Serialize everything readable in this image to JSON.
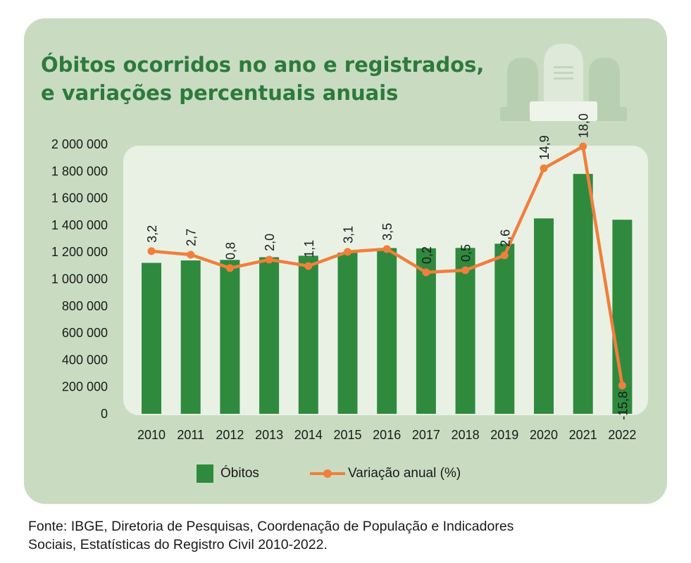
{
  "title": {
    "line1": "Óbitos ocorridos no ano e registrados,",
    "line2": "e variações percentuais anuais"
  },
  "colors": {
    "card": "#c9dcc2",
    "plot_background": "#e9f1e5",
    "bar": "#2f8a3e",
    "line": "#f07f3c",
    "title": "#2d7a3c"
  },
  "chart_data": {
    "type": "bar",
    "title": "Óbitos ocorridos no ano e registrados, e variações percentuais anuais",
    "categories": [
      "2010",
      "2011",
      "2012",
      "2013",
      "2014",
      "2015",
      "2016",
      "2017",
      "2018",
      "2019",
      "2020",
      "2021",
      "2022"
    ],
    "y_ticks": [
      "2 000 000",
      "1 800 000",
      "1 600 000",
      "1 400 000",
      "1 200 000",
      "1 000 000",
      "800 000",
      "600 000",
      "400 000",
      "200 000",
      "0"
    ],
    "ylim": [
      0,
      2000000
    ],
    "series": [
      {
        "name": "Óbitos",
        "type": "bar",
        "values": [
          1120000,
          1138000,
          1142000,
          1162000,
          1173000,
          1196000,
          1230000,
          1228000,
          1231000,
          1262000,
          1450000,
          1780000,
          1440000
        ]
      },
      {
        "name": "Variação anual (%)",
        "type": "line",
        "values": [
          3.2,
          2.7,
          0.8,
          2.0,
          1.1,
          3.1,
          3.5,
          0.2,
          0.5,
          2.6,
          14.9,
          18.0,
          -15.8
        ],
        "labels": [
          "3,2",
          "2,7",
          "0,8",
          "2,0",
          "1,1",
          "3,1",
          "3,5",
          "0,2",
          "0,5",
          "2,6",
          "14,9",
          "18,0",
          "-15,8"
        ]
      }
    ],
    "legend": [
      "Óbitos",
      "Variação anual (%)"
    ],
    "legend_position": "bottom"
  },
  "source": {
    "line1": "Fonte: IBGE, Diretoria de Pesquisas, Coordenação de População e Indicadores",
    "line2": "Sociais, Estatísticas do Registro Civil 2010-2022."
  }
}
